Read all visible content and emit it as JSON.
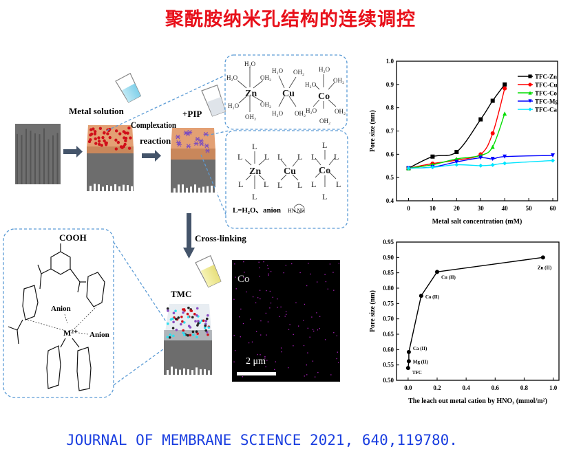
{
  "title": "聚酰胺纳米孔结构的连续调控",
  "footer": "JOURNAL OF MEMBRANE SCIENCE 2021, 640,119780.",
  "schematic": {
    "metal_solution": "Metal solution",
    "complexation_1": "Complexation",
    "complexation_2": "reaction",
    "pip": "+PIP",
    "cross_linking": "Cross-linking",
    "tmc": "TMC",
    "hydrate": {
      "zn": "Zn",
      "cu": "Cu",
      "co": "Co",
      "h2o": "H₂O",
      "oh2": "OH₂"
    },
    "ligand": {
      "l": "L",
      "legend": "L=H₂O、anion",
      "pip_ring": "HN   NH"
    },
    "molecule": {
      "cooh": "COOH",
      "anion": "Anion",
      "metal": "M²⁺"
    },
    "eds": {
      "element": "Co",
      "scale": "2 μm"
    },
    "colors": {
      "dashed_box": "#5b9bd5",
      "arrow": "#44546a",
      "top_layer": "#e3a074",
      "support": "#6d6d6d",
      "metal_dot": "#d0101a",
      "eds_dot": "#b020c0"
    }
  },
  "chart_data": [
    {
      "type": "line",
      "xlabel": "Metal salt concentration (mM)",
      "ylabel": "Pore size (nm)",
      "xlim": [
        -5,
        62
      ],
      "ylim": [
        0.4,
        1.0
      ],
      "xticks": [
        "0",
        "10",
        "20",
        "30",
        "40",
        "50",
        "60"
      ],
      "yticks": [
        "0.4",
        "0.5",
        "0.6",
        "0.7",
        "0.8",
        "0.9",
        "1.0"
      ],
      "legend_position": "top-right",
      "series": [
        {
          "name": "TFC-Zn",
          "color": "#000000",
          "marker": "square",
          "x": [
            0,
            10,
            20,
            30,
            35,
            40
          ],
          "y": [
            0.54,
            0.59,
            0.61,
            0.75,
            0.83,
            0.9
          ]
        },
        {
          "name": "TFC-Cu",
          "color": "#ff0000",
          "marker": "circle",
          "x": [
            0,
            10,
            20,
            30,
            35,
            40
          ],
          "y": [
            0.54,
            0.56,
            0.575,
            0.6,
            0.69,
            0.883
          ]
        },
        {
          "name": "TFC-Co",
          "color": "#00dd00",
          "marker": "triangle-up",
          "x": [
            0,
            10,
            20,
            30,
            35,
            40
          ],
          "y": [
            0.54,
            0.555,
            0.58,
            0.595,
            0.632,
            0.775
          ]
        },
        {
          "name": "TFC-Mg",
          "color": "#0000ff",
          "marker": "triangle-down",
          "x": [
            0,
            10,
            20,
            30,
            35,
            40,
            60
          ],
          "y": [
            0.54,
            0.545,
            0.567,
            0.585,
            0.58,
            0.59,
            0.595
          ]
        },
        {
          "name": "TFC-Ca",
          "color": "#00e5ff",
          "marker": "diamond",
          "x": [
            0,
            10,
            20,
            30,
            35,
            40,
            60
          ],
          "y": [
            0.54,
            0.544,
            0.555,
            0.551,
            0.554,
            0.561,
            0.573
          ]
        }
      ]
    },
    {
      "type": "line",
      "xlabel": "The leach out metal cation by HNO₃ (mmol/m²)",
      "ylabel": "Pore size (nm)",
      "xlim": [
        -0.08,
        1.04
      ],
      "ylim": [
        0.5,
        0.95
      ],
      "xticks": [
        "0.0",
        "0.2",
        "0.4",
        "0.6",
        "0.8",
        "1.0"
      ],
      "yticks": [
        "0.50",
        "0.55",
        "0.60",
        "0.65",
        "0.70",
        "0.75",
        "0.80",
        "0.85",
        "0.90",
        "0.95"
      ],
      "series": [
        {
          "color": "#000000",
          "x": [
            0,
            0.005,
            0.005,
            0.09,
            0.2,
            0.93
          ],
          "y": [
            0.54,
            0.562,
            0.592,
            0.775,
            0.853,
            0.9
          ],
          "labels": [
            "TFC",
            "Mg (II)",
            "Ca (II)",
            "Co (II)",
            "Cu (II)",
            "Zn (II)"
          ]
        }
      ]
    }
  ]
}
